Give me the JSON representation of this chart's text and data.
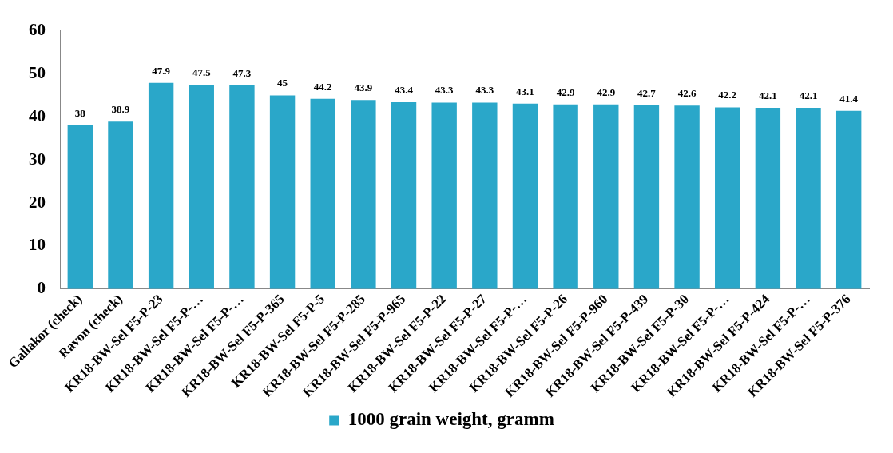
{
  "chart_data": {
    "type": "bar",
    "categories": [
      "Gallakor (check)",
      "Ravon (check)",
      "KR18-BW-Sel F5-P-23",
      "KR18-BW-Sel F5-P-…",
      "KR18-BW-Sel F5-P-…",
      "KR18-BW-Sel F5-P-365",
      "KR18-BW-Sel F5-P-5",
      "KR18-BW-Sel F5-P-285",
      "KR18-BW-Sel F5-P-965",
      "KR18-BW-Sel F5-P-22",
      "KR18-BW-Sel F5-P-27",
      "KR18-BW-Sel F5-P-…",
      "KR18-BW-Sel F5-P-26",
      "KR18-BW-Sel F5-P-960",
      "KR18-BW-Sel F5-P-439",
      "KR18-BW-Sel F5-P-30",
      "KR18-BW-Sel F5-P-…",
      "KR18-BW-Sel F5-P-424",
      "KR18-BW-Sel F5-P-…",
      "KR18-BW-Sel F5-P-376"
    ],
    "series": [
      {
        "name": "1000 grain weight, gramm",
        "color": "#2aa7c9",
        "values": [
          38,
          38.9,
          47.9,
          47.5,
          47.3,
          45,
          44.2,
          43.9,
          43.4,
          43.3,
          43.3,
          43.1,
          42.9,
          42.9,
          42.7,
          42.6,
          42.2,
          42.1,
          42.1,
          41.4
        ]
      }
    ],
    "ylim": [
      0,
      60
    ],
    "yticks": [
      0,
      10,
      20,
      30,
      40,
      50,
      60
    ],
    "grid": false,
    "legend": "bottom",
    "data_labels": true
  }
}
